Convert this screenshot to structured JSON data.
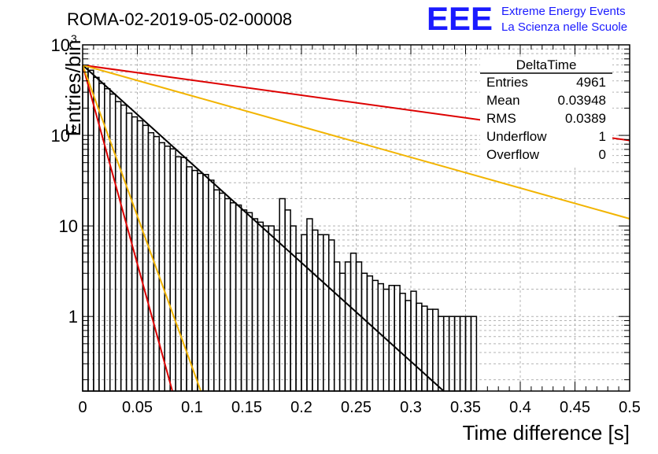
{
  "title": "ROMA-02-2019-05-02-00008",
  "logo": {
    "text": "EEE",
    "line1": "Extreme Energy Events",
    "line2": "La Scienza nelle Scuole",
    "color": "#1a1aff"
  },
  "stats": {
    "name": "DeltaTime",
    "rows": [
      {
        "label": "Entries",
        "value": "4961"
      },
      {
        "label": "Mean",
        "value": "0.03948"
      },
      {
        "label": "RMS",
        "value": "0.0389"
      },
      {
        "label": "Underflow",
        "value": "1"
      },
      {
        "label": "Overflow",
        "value": "0"
      }
    ]
  },
  "chart_data": {
    "type": "bar",
    "title": "ROMA-02-2019-05-02-00008",
    "xlabel": "Time difference [s]",
    "ylabel": "Entries/bin",
    "xlim": [
      0,
      0.5
    ],
    "ylim": [
      0.15,
      1000
    ],
    "yscale": "log",
    "grid": true,
    "legend": "stats box top-right",
    "x_ticks": [
      {
        "value": 0,
        "label": "0"
      },
      {
        "value": 0.05,
        "label": "0.05"
      },
      {
        "value": 0.1,
        "label": "0.1"
      },
      {
        "value": 0.15,
        "label": "0.15"
      },
      {
        "value": 0.2,
        "label": "0.2"
      },
      {
        "value": 0.25,
        "label": "0.25"
      },
      {
        "value": 0.3,
        "label": "0.3"
      },
      {
        "value": 0.35,
        "label": "0.35"
      },
      {
        "value": 0.4,
        "label": "0.4"
      },
      {
        "value": 0.45,
        "label": "0.45"
      },
      {
        "value": 0.5,
        "label": "0.5"
      }
    ],
    "y_ticks": [
      {
        "value": 1,
        "label": "1"
      },
      {
        "value": 10,
        "label": "10"
      },
      {
        "value": 100,
        "label": "10",
        "exp": "2"
      },
      {
        "value": 1000,
        "label": "10",
        "exp": "3"
      }
    ],
    "bin_width": 0.005,
    "histogram": [
      597,
      524,
      437,
      376,
      328,
      286,
      236,
      216,
      176,
      160,
      145,
      129,
      107,
      97,
      83,
      76,
      71,
      58,
      57,
      45,
      41,
      38,
      37,
      32,
      25,
      23,
      20,
      18,
      17,
      15,
      14,
      12,
      11,
      10,
      10,
      9,
      20,
      15,
      10,
      5,
      8,
      12,
      9,
      8,
      8,
      7,
      4,
      3,
      4,
      5,
      4,
      3,
      2.8,
      2.5,
      2.3,
      2.0,
      2.2,
      2.2,
      1.8,
      1.5,
      1.9,
      1.4,
      1.3,
      1.2,
      1.2,
      1.0,
      1.0,
      1.0,
      1.0,
      1.0,
      1.0,
      1.0,
      0,
      0,
      0,
      0,
      0,
      0,
      0,
      0,
      0,
      0,
      0,
      0,
      0,
      0,
      0,
      0,
      0,
      0,
      0,
      0,
      0,
      0,
      0,
      0,
      0,
      0,
      0,
      0
    ],
    "curves": [
      {
        "color": "#000000",
        "points": [
          [
            0,
            597
          ],
          [
            0.33,
            0.15
          ]
        ]
      },
      {
        "color": "#dd0000",
        "points": [
          [
            0,
            597
          ],
          [
            0.5,
            88
          ]
        ]
      },
      {
        "color": "#f2b400",
        "points": [
          [
            0,
            597
          ],
          [
            0.5,
            12
          ]
        ]
      },
      {
        "color": "#dd0000",
        "points": [
          [
            0,
            597
          ],
          [
            0.082,
            0.15
          ]
        ]
      },
      {
        "color": "#f2b400",
        "points": [
          [
            0,
            597
          ],
          [
            0.108,
            0.15
          ]
        ]
      }
    ]
  }
}
